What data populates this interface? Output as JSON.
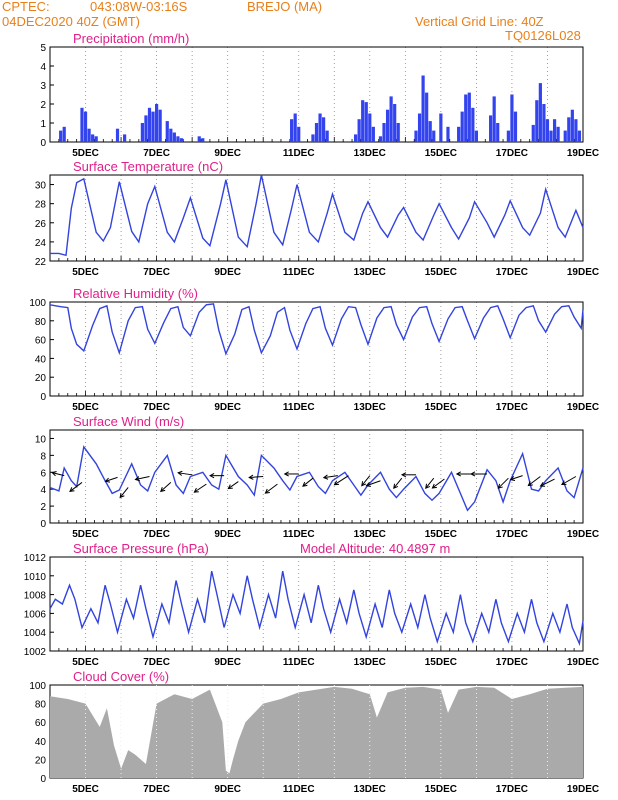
{
  "header": {
    "source": "CPTEC:",
    "coords": "043:08W-03:16S",
    "station": "BREJO (MA)",
    "run": "04DEC2020 40Z (GMT)",
    "grid_note": "Vertical Grid Line: 40Z",
    "model": "TQ0126L028"
  },
  "colors": {
    "line": "#3344dd",
    "bar": "#3344ee",
    "cloud": "#aaaaaa",
    "title": "#e0208a",
    "header": "#e8801a"
  },
  "x_ticks": [
    "5DEC",
    "7DEC",
    "9DEC",
    "11DEC",
    "13DEC",
    "15DEC",
    "17DEC",
    "19DEC"
  ],
  "chart_data": [
    {
      "type": "bar",
      "title": "Precipitation (mm/h)",
      "ylim": [
        0,
        5
      ],
      "yticks": [
        0,
        1,
        2,
        3,
        4,
        5
      ],
      "x_days": [
        4.3,
        4.4,
        4.9,
        5.0,
        5.1,
        5.2,
        5.3,
        5.9,
        6.1,
        6.6,
        6.7,
        6.8,
        6.9,
        7.0,
        7.1,
        7.3,
        7.4,
        7.5,
        7.6,
        7.7,
        8.2,
        8.3,
        10.8,
        10.9,
        11.0,
        11.4,
        11.5,
        11.6,
        11.7,
        11.8,
        12.6,
        12.7,
        12.8,
        12.9,
        13.0,
        13.1,
        13.3,
        13.4,
        13.5,
        13.6,
        13.7,
        13.8,
        14.3,
        14.4,
        14.5,
        14.6,
        14.7,
        14.8,
        15.0,
        15.2,
        15.5,
        15.6,
        15.7,
        15.8,
        15.9,
        16.0,
        16.4,
        16.5,
        16.6,
        16.9,
        17.0,
        17.1,
        17.6,
        17.7,
        17.8,
        17.9,
        18.0,
        18.1,
        18.2,
        18.3,
        18.5,
        18.6,
        18.7,
        18.8,
        18.9
      ],
      "values": [
        0.6,
        0.8,
        1.8,
        1.6,
        0.7,
        0.4,
        0.3,
        0.7,
        0.4,
        1.0,
        1.4,
        1.8,
        1.6,
        2.0,
        1.7,
        1.1,
        0.7,
        0.5,
        0.3,
        0.2,
        0.3,
        0.2,
        1.2,
        1.5,
        0.8,
        0.4,
        1.0,
        1.5,
        1.3,
        0.6,
        0.4,
        1.2,
        2.2,
        2.1,
        1.5,
        0.8,
        0.3,
        1.0,
        1.7,
        2.4,
        2.0,
        1.0,
        0.6,
        1.5,
        3.5,
        2.6,
        1.1,
        0.6,
        1.5,
        0.8,
        0.8,
        1.6,
        2.5,
        2.6,
        1.8,
        0.6,
        1.4,
        2.4,
        1.0,
        0.6,
        2.5,
        1.6,
        0.9,
        2.2,
        3.1,
        2.0,
        1.2,
        0.6,
        1.2,
        0.8,
        0.6,
        1.3,
        1.7,
        1.2,
        0.6
      ]
    },
    {
      "type": "line",
      "title": "Surface Temperature (nC)",
      "ylim": [
        22,
        31
      ],
      "yticks": [
        22,
        24,
        26,
        28,
        30
      ],
      "x_days": [
        4,
        4.25,
        4.45,
        4.6,
        4.75,
        4.95,
        5.3,
        5.5,
        5.7,
        5.95,
        6.3,
        6.5,
        6.75,
        6.95,
        7.3,
        7.5,
        7.75,
        7.95,
        8.3,
        8.5,
        8.8,
        8.95,
        9.3,
        9.55,
        9.8,
        9.95,
        10.3,
        10.55,
        10.8,
        10.95,
        11.3,
        11.55,
        11.8,
        11.95,
        12.3,
        12.55,
        12.8,
        12.95,
        13.3,
        13.5,
        13.8,
        13.95,
        14.3,
        14.5,
        14.8,
        14.95,
        15.3,
        15.5,
        15.8,
        15.95,
        16.3,
        16.5,
        16.8,
        16.95,
        17.3,
        17.5,
        17.8,
        17.95,
        18.3,
        18.5,
        18.8,
        19
      ],
      "values": [
        22.8,
        22.8,
        22.6,
        27.5,
        30.2,
        30.6,
        25.0,
        24.1,
        25.5,
        30.3,
        25.1,
        24.0,
        28.0,
        29.8,
        25.0,
        24.0,
        26.5,
        28.6,
        24.4,
        23.6,
        28.0,
        30.5,
        24.5,
        23.5,
        28.0,
        31.0,
        25.0,
        23.7,
        27.5,
        30.0,
        25.0,
        24.0,
        27.0,
        29.0,
        25.0,
        24.2,
        27.0,
        28.2,
        25.5,
        24.5,
        26.8,
        27.6,
        25.0,
        24.2,
        26.8,
        28.0,
        25.5,
        24.3,
        26.5,
        28.2,
        26.0,
        24.5,
        26.8,
        28.3,
        25.5,
        24.7,
        27.0,
        29.5,
        25.5,
        24.5,
        27.3,
        25.5
      ]
    },
    {
      "type": "line",
      "title": "Relative Humidity (%)",
      "ylim": [
        0,
        100
      ],
      "yticks": [
        0,
        20,
        40,
        60,
        80,
        100
      ],
      "x_days": [
        4,
        4.3,
        4.5,
        4.6,
        4.75,
        4.95,
        5.2,
        5.4,
        5.6,
        5.75,
        5.95,
        6.2,
        6.4,
        6.6,
        6.75,
        6.95,
        7.2,
        7.4,
        7.6,
        7.75,
        7.95,
        8.2,
        8.4,
        8.6,
        8.75,
        8.95,
        9.2,
        9.4,
        9.6,
        9.75,
        9.95,
        10.2,
        10.4,
        10.6,
        10.75,
        10.95,
        11.2,
        11.4,
        11.6,
        11.75,
        11.95,
        12.2,
        12.4,
        12.6,
        12.75,
        12.95,
        13.2,
        13.4,
        13.6,
        13.75,
        13.95,
        14.2,
        14.4,
        14.6,
        14.75,
        14.95,
        15.2,
        15.4,
        15.6,
        15.75,
        15.95,
        16.2,
        16.4,
        16.6,
        16.75,
        16.95,
        17.2,
        17.4,
        17.6,
        17.75,
        17.95,
        18.2,
        18.4,
        18.6,
        18.75,
        18.95,
        19
      ],
      "values": [
        97,
        95,
        94,
        72,
        55,
        48,
        75,
        93,
        96,
        68,
        46,
        80,
        94,
        95,
        71,
        56,
        78,
        93,
        95,
        73,
        64,
        89,
        97,
        98,
        70,
        45,
        66,
        92,
        95,
        70,
        46,
        64,
        89,
        94,
        70,
        50,
        77,
        93,
        95,
        72,
        54,
        82,
        95,
        94,
        76,
        55,
        83,
        94,
        95,
        76,
        60,
        84,
        94,
        95,
        77,
        58,
        82,
        94,
        95,
        80,
        61,
        83,
        94,
        96,
        82,
        62,
        86,
        94,
        96,
        80,
        68,
        87,
        95,
        96,
        84,
        72,
        92
      ]
    },
    {
      "type": "line",
      "title": "Surface Wind (m/s)",
      "ylim": [
        0,
        11
      ],
      "yticks": [
        0,
        2,
        4,
        6,
        8,
        10
      ],
      "x_days": [
        4,
        4.25,
        4.4,
        4.6,
        4.75,
        4.95,
        5.3,
        5.55,
        5.75,
        5.95,
        6.3,
        6.55,
        6.75,
        6.95,
        7.3,
        7.55,
        7.75,
        7.95,
        8.3,
        8.55,
        8.75,
        8.95,
        9.3,
        9.55,
        9.75,
        9.95,
        10.3,
        10.55,
        10.75,
        10.95,
        11.3,
        11.55,
        11.75,
        11.95,
        12.3,
        12.55,
        12.75,
        12.95,
        13.3,
        13.55,
        13.75,
        13.95,
        14.3,
        14.55,
        14.75,
        14.95,
        15.3,
        15.55,
        15.75,
        15.95,
        16.3,
        16.55,
        16.75,
        16.95,
        17.3,
        17.55,
        17.75,
        17.95,
        18.3,
        18.55,
        18.75,
        19
      ],
      "values": [
        4.2,
        3.8,
        6.5,
        5.0,
        4.3,
        9.0,
        7.0,
        5.0,
        3.5,
        3.9,
        7.0,
        4.5,
        3.8,
        6.0,
        8.0,
        4.5,
        3.5,
        5.5,
        6.0,
        4.5,
        4.0,
        8.0,
        5.5,
        4.5,
        3.3,
        8.0,
        6.5,
        5.0,
        3.9,
        5.5,
        6.0,
        4.3,
        3.5,
        5.0,
        6.0,
        4.5,
        3.3,
        4.5,
        6.0,
        4.0,
        3.0,
        4.0,
        5.5,
        3.5,
        2.7,
        3.5,
        6.0,
        3.5,
        1.5,
        2.5,
        6.3,
        5.0,
        2.5,
        5.0,
        8.2,
        4.0,
        3.8,
        5.0,
        6.5,
        3.8,
        3.0,
        6.5
      ],
      "arrows": [
        {
          "x": 4.4,
          "y": 5.6,
          "dx": -12,
          "dy": -3
        },
        {
          "x": 4.9,
          "y": 4.8,
          "dx": -12,
          "dy": 9
        },
        {
          "x": 5.9,
          "y": 5.4,
          "dx": -12,
          "dy": 4
        },
        {
          "x": 6.2,
          "y": 4.2,
          "dx": -8,
          "dy": 10
        },
        {
          "x": 6.8,
          "y": 5.5,
          "dx": -14,
          "dy": 3
        },
        {
          "x": 7.4,
          "y": 4.8,
          "dx": -10,
          "dy": 9
        },
        {
          "x": 8.0,
          "y": 5.7,
          "dx": -14,
          "dy": -2
        },
        {
          "x": 8.4,
          "y": 4.6,
          "dx": -12,
          "dy": 8
        },
        {
          "x": 8.9,
          "y": 5.6,
          "dx": -14,
          "dy": 0
        },
        {
          "x": 9.3,
          "y": 4.9,
          "dx": -10,
          "dy": 7
        },
        {
          "x": 10.0,
          "y": 5.5,
          "dx": -14,
          "dy": 1
        },
        {
          "x": 10.4,
          "y": 4.6,
          "dx": -12,
          "dy": 9
        },
        {
          "x": 11.0,
          "y": 5.8,
          "dx": -14,
          "dy": 0
        },
        {
          "x": 11.4,
          "y": 5.3,
          "dx": -10,
          "dy": 8
        },
        {
          "x": 12.1,
          "y": 5.6,
          "dx": -14,
          "dy": 2
        },
        {
          "x": 12.4,
          "y": 5.6,
          "dx": -14,
          "dy": 9
        },
        {
          "x": 13.0,
          "y": 5.6,
          "dx": -8,
          "dy": 10
        },
        {
          "x": 13.3,
          "y": 5.0,
          "dx": -14,
          "dy": 5
        },
        {
          "x": 13.9,
          "y": 5.3,
          "dx": -8,
          "dy": 10
        },
        {
          "x": 14.3,
          "y": 5.7,
          "dx": -14,
          "dy": 0
        },
        {
          "x": 14.8,
          "y": 5.3,
          "dx": -8,
          "dy": 10
        },
        {
          "x": 15.1,
          "y": 5.2,
          "dx": -12,
          "dy": 9
        },
        {
          "x": 15.9,
          "y": 5.8,
          "dx": -16,
          "dy": 0
        },
        {
          "x": 16.3,
          "y": 5.8,
          "dx": -16,
          "dy": 0
        },
        {
          "x": 16.9,
          "y": 5.3,
          "dx": -10,
          "dy": 10
        },
        {
          "x": 17.3,
          "y": 5.6,
          "dx": -12,
          "dy": 4
        },
        {
          "x": 17.8,
          "y": 5.5,
          "dx": -12,
          "dy": 9
        },
        {
          "x": 18.2,
          "y": 5.2,
          "dx": -14,
          "dy": 7
        },
        {
          "x": 18.8,
          "y": 5.5,
          "dx": -14,
          "dy": 8
        }
      ]
    },
    {
      "type": "line",
      "title": "Surface Pressure (hPa)",
      "note": "Model Altitude: 40.4897 m",
      "ylim": [
        1002,
        1012
      ],
      "yticks": [
        1002,
        1004,
        1006,
        1008,
        1010,
        1012
      ],
      "x_days": [
        4,
        4.15,
        4.35,
        4.55,
        4.7,
        4.9,
        5.15,
        5.35,
        5.55,
        5.7,
        5.9,
        6.15,
        6.35,
        6.55,
        6.7,
        6.9,
        7.15,
        7.35,
        7.55,
        7.7,
        7.9,
        8.15,
        8.35,
        8.55,
        8.7,
        8.9,
        9.15,
        9.35,
        9.55,
        9.7,
        9.9,
        10.15,
        10.35,
        10.55,
        10.7,
        10.9,
        11.15,
        11.35,
        11.55,
        11.7,
        11.9,
        12.15,
        12.35,
        12.55,
        12.7,
        12.9,
        13.15,
        13.35,
        13.55,
        13.7,
        13.9,
        14.15,
        14.35,
        14.55,
        14.7,
        14.9,
        15.15,
        15.35,
        15.55,
        15.7,
        15.9,
        16.15,
        16.35,
        16.55,
        16.7,
        16.9,
        17.15,
        17.35,
        17.55,
        17.7,
        17.9,
        18.15,
        18.35,
        18.55,
        18.7,
        18.9,
        19
      ],
      "values": [
        1006.5,
        1007.5,
        1007.0,
        1009.0,
        1007.5,
        1004.5,
        1006.5,
        1005.0,
        1009.0,
        1007.0,
        1004.0,
        1007.5,
        1005.5,
        1009.0,
        1006.5,
        1003.5,
        1007.0,
        1005.0,
        1009.5,
        1007.0,
        1004.0,
        1007.5,
        1005.0,
        1010.5,
        1008.0,
        1004.5,
        1008.0,
        1006.0,
        1010.0,
        1007.5,
        1004.5,
        1008.0,
        1005.5,
        1010.5,
        1007.5,
        1004.5,
        1008.0,
        1005.0,
        1009.0,
        1006.5,
        1004.0,
        1007.5,
        1005.0,
        1008.5,
        1006.0,
        1003.5,
        1007.0,
        1004.5,
        1008.5,
        1006.0,
        1004.0,
        1007.0,
        1004.5,
        1008.0,
        1005.5,
        1003.0,
        1006.0,
        1004.0,
        1008.0,
        1005.0,
        1003.0,
        1006.0,
        1004.0,
        1007.5,
        1005.0,
        1003.0,
        1006.0,
        1004.0,
        1007.5,
        1005.0,
        1003.0,
        1006.0,
        1004.0,
        1007.0,
        1004.5,
        1002.8,
        1005.2
      ]
    },
    {
      "type": "area",
      "title": "Cloud Cover (%)",
      "ylim": [
        0,
        100
      ],
      "yticks": [
        0,
        20,
        40,
        60,
        80,
        100
      ],
      "x_days": [
        4,
        4.5,
        5,
        5.4,
        5.6,
        5.8,
        6.0,
        6.2,
        6.4,
        6.7,
        7.0,
        7.5,
        8.0,
        8.5,
        8.85,
        8.95,
        9.05,
        9.15,
        9.3,
        9.5,
        10.0,
        10.5,
        11.0,
        11.5,
        12.0,
        12.5,
        13.0,
        13.2,
        13.5,
        14.0,
        14.5,
        15.0,
        15.2,
        15.5,
        16.0,
        16.5,
        17.0,
        17.5,
        18.0,
        18.5,
        19
      ],
      "values": [
        88,
        85,
        80,
        55,
        75,
        35,
        10,
        30,
        25,
        15,
        80,
        90,
        85,
        95,
        60,
        8,
        5,
        20,
        40,
        60,
        80,
        85,
        92,
        95,
        98,
        96,
        90,
        65,
        92,
        97,
        98,
        95,
        70,
        95,
        98,
        97,
        85,
        90,
        96,
        97,
        98
      ]
    }
  ]
}
